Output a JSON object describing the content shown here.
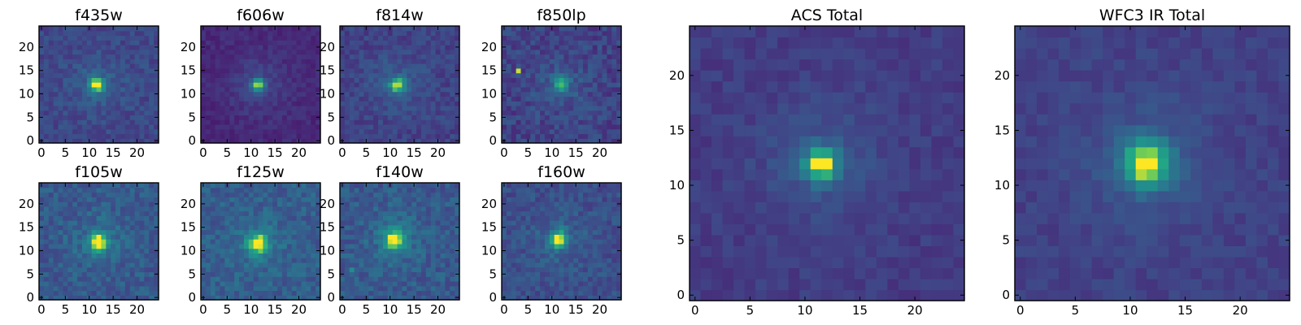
{
  "chart_data": [
    {
      "type": "heatmap",
      "title": "f435w",
      "grid_size": 25,
      "xticks": [
        "0",
        "5",
        "10",
        "15",
        "20"
      ],
      "yticks": [
        "0",
        "5",
        "10",
        "15",
        "20"
      ],
      "xlim": [
        0,
        24
      ],
      "ylim": [
        0,
        24
      ],
      "peak": [
        11.5,
        12
      ],
      "peak_spread": 1.0,
      "secondary": [],
      "source_level": 0.75,
      "background": 0.27,
      "noise": 0.08,
      "colormap": "viridis"
    },
    {
      "type": "heatmap",
      "title": "f606w",
      "grid_size": 25,
      "xticks": [
        "0",
        "5",
        "10",
        "15",
        "20"
      ],
      "yticks": [
        "0",
        "5",
        "10",
        "15",
        "20"
      ],
      "xlim": [
        0,
        24
      ],
      "ylim": [
        0,
        24
      ],
      "peak": [
        11.5,
        12
      ],
      "peak_spread": 0.9,
      "secondary": [],
      "source_level": 0.75,
      "background": 0.15,
      "noise": 0.05,
      "colormap": "viridis"
    },
    {
      "type": "heatmap",
      "title": "f814w",
      "grid_size": 25,
      "xticks": [
        "0",
        "5",
        "10",
        "15",
        "20"
      ],
      "yticks": [
        "0",
        "5",
        "10",
        "15",
        "20"
      ],
      "xlim": [
        0,
        24
      ],
      "ylim": [
        0,
        24
      ],
      "peak": [
        11.5,
        12
      ],
      "peak_spread": 1.0,
      "secondary": [],
      "source_level": 0.7,
      "background": 0.25,
      "noise": 0.08,
      "colormap": "viridis"
    },
    {
      "type": "heatmap",
      "title": "f850lp",
      "grid_size": 25,
      "xticks": [
        "0",
        "5",
        "10",
        "15",
        "20"
      ],
      "yticks": [
        "0",
        "5",
        "10",
        "15",
        "20"
      ],
      "xlim": [
        0,
        24
      ],
      "ylim": [
        0,
        24
      ],
      "peak": [
        12,
        12
      ],
      "peak_spread": 1.0,
      "secondary": [
        {
          "x": 3,
          "y": 15,
          "value": 0.95
        }
      ],
      "source_level": 0.5,
      "background": 0.25,
      "noise": 0.1,
      "colormap": "viridis"
    },
    {
      "type": "heatmap",
      "title": "f105w",
      "grid_size": 25,
      "xticks": [
        "0",
        "5",
        "10",
        "15",
        "20"
      ],
      "yticks": [
        "0",
        "5",
        "10",
        "15",
        "20"
      ],
      "xlim": [
        0,
        24
      ],
      "ylim": [
        0,
        24
      ],
      "peak": [
        12,
        12
      ],
      "peak_spread": 1.3,
      "secondary": [],
      "source_level": 0.65,
      "background": 0.35,
      "noise": 0.1,
      "colormap": "viridis"
    },
    {
      "type": "heatmap",
      "title": "f125w",
      "grid_size": 25,
      "xticks": [
        "0",
        "5",
        "10",
        "15",
        "20"
      ],
      "yticks": [
        "0",
        "5",
        "10",
        "15",
        "20"
      ],
      "xlim": [
        0,
        24
      ],
      "ylim": [
        0,
        24
      ],
      "peak": [
        11.5,
        11.5
      ],
      "peak_spread": 1.4,
      "secondary": [],
      "source_level": 0.65,
      "background": 0.37,
      "noise": 0.1,
      "colormap": "viridis"
    },
    {
      "type": "heatmap",
      "title": "f140w",
      "grid_size": 25,
      "xticks": [
        "0",
        "5",
        "10",
        "15",
        "20"
      ],
      "yticks": [
        "0",
        "5",
        "10",
        "15",
        "20"
      ],
      "xlim": [
        0,
        24
      ],
      "ylim": [
        0,
        24
      ],
      "peak": [
        11,
        12.5
      ],
      "peak_spread": 1.4,
      "secondary": [
        {
          "x": 2,
          "y": 6,
          "value": 0.6
        }
      ],
      "source_level": 0.65,
      "background": 0.35,
      "noise": 0.1,
      "colormap": "viridis"
    },
    {
      "type": "heatmap",
      "title": "f160w",
      "grid_size": 25,
      "xticks": [
        "0",
        "5",
        "10",
        "15",
        "20"
      ],
      "yticks": [
        "0",
        "5",
        "10",
        "15",
        "20"
      ],
      "xlim": [
        0,
        24
      ],
      "ylim": [
        0,
        24
      ],
      "peak": [
        11.5,
        12.5
      ],
      "peak_spread": 1.2,
      "secondary": [],
      "source_level": 0.65,
      "background": 0.3,
      "noise": 0.09,
      "colormap": "viridis"
    },
    {
      "type": "heatmap",
      "title": "ACS Total",
      "grid_size": 25,
      "xticks": [
        "0",
        "5",
        "10",
        "15",
        "20"
      ],
      "yticks": [
        "0",
        "5",
        "10",
        "15",
        "20"
      ],
      "xlim": [
        0,
        24
      ],
      "ylim": [
        0,
        24
      ],
      "peak": [
        11.5,
        12
      ],
      "peak_spread": 1.0,
      "secondary": [],
      "source_level": 0.75,
      "background": 0.22,
      "noise": 0.05,
      "colormap": "viridis"
    },
    {
      "type": "heatmap",
      "title": "WFC3 IR Total",
      "grid_size": 25,
      "xticks": [
        "0",
        "5",
        "10",
        "15",
        "20"
      ],
      "yticks": [
        "0",
        "5",
        "10",
        "15",
        "20"
      ],
      "xlim": [
        0,
        24
      ],
      "ylim": [
        0,
        24
      ],
      "peak": [
        11.5,
        12
      ],
      "peak_spread": 1.5,
      "secondary": [],
      "source_level": 0.72,
      "background": 0.24,
      "noise": 0.05,
      "colormap": "viridis"
    }
  ]
}
